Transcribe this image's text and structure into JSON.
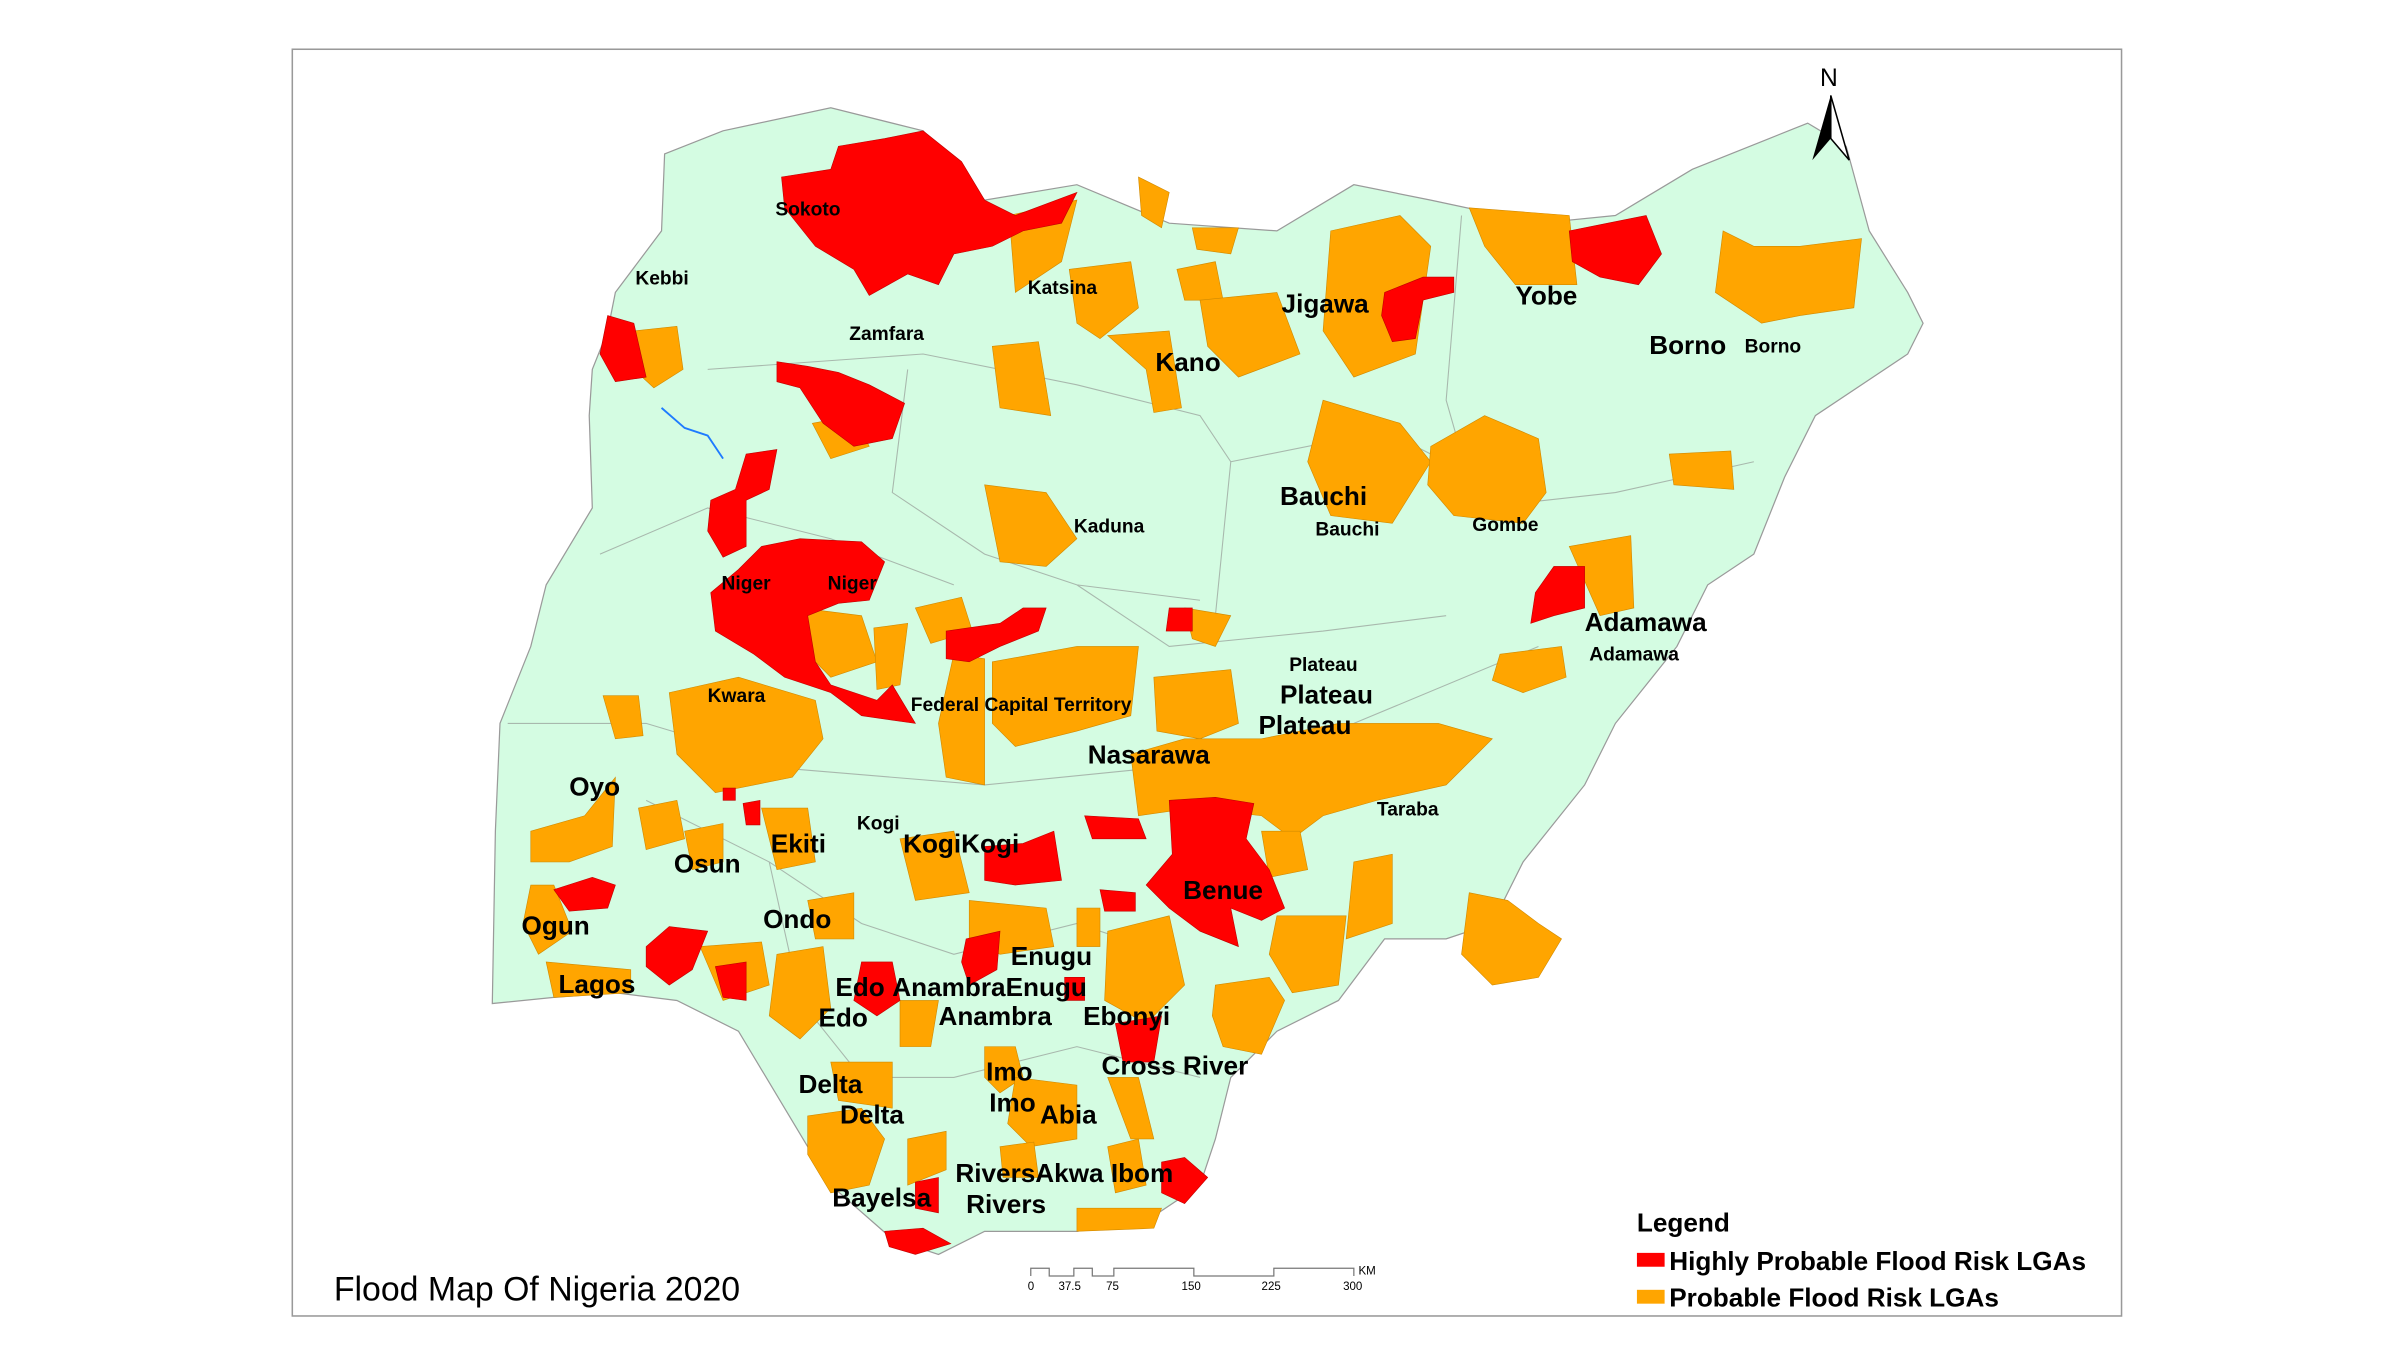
{
  "title": "Flood Map Of Nigeria 2020",
  "north_arrow": {
    "label": "N",
    "icon": "north-arrow-icon"
  },
  "colors": {
    "land": "#d4fce2",
    "high_risk": "#ff0000",
    "probable_risk": "#ffa500",
    "border": "#9a9a9a",
    "river": "#1e7bff"
  },
  "legend": {
    "title": "Legend",
    "items": [
      {
        "label": "Highly Probable Flood Risk LGAs",
        "color": "#ff0000"
      },
      {
        "label": "Probable Flood Risk LGAs",
        "color": "#ffa500"
      }
    ]
  },
  "scale_bar": {
    "ticks": [
      "0",
      "37.5",
      "75",
      "150",
      "225",
      "300"
    ],
    "unit": "KM"
  },
  "labels": [
    "Sokoto",
    "Kebbi",
    "Zamfara",
    "Katsina",
    "Jigawa",
    "Kano",
    "Yobe",
    "Borno",
    "Borno",
    "Bauchi",
    "Bauchi",
    "Gombe",
    "Kaduna",
    "Niger",
    "Niger",
    "Adamawa",
    "Adamawa",
    "Plateau",
    "Plateau",
    "Plateau",
    "Kwara",
    "Federal Capital Territory",
    "Nasarawa",
    "Taraba",
    "Oyo",
    "Kogi",
    "Ekiti",
    "KogiKogi",
    "Osun",
    "Benue",
    "Ogun",
    "Ondo",
    "Enugu",
    "Edo",
    "AnambraEnugu",
    "Lagos",
    "Edo",
    "Anambra",
    "Ebonyi",
    "Cross River",
    "Imo",
    "Delta",
    "Imo",
    "Delta",
    "Abia",
    "RiversAkwa Ibom",
    "Bayelsa",
    "Rivers"
  ]
}
